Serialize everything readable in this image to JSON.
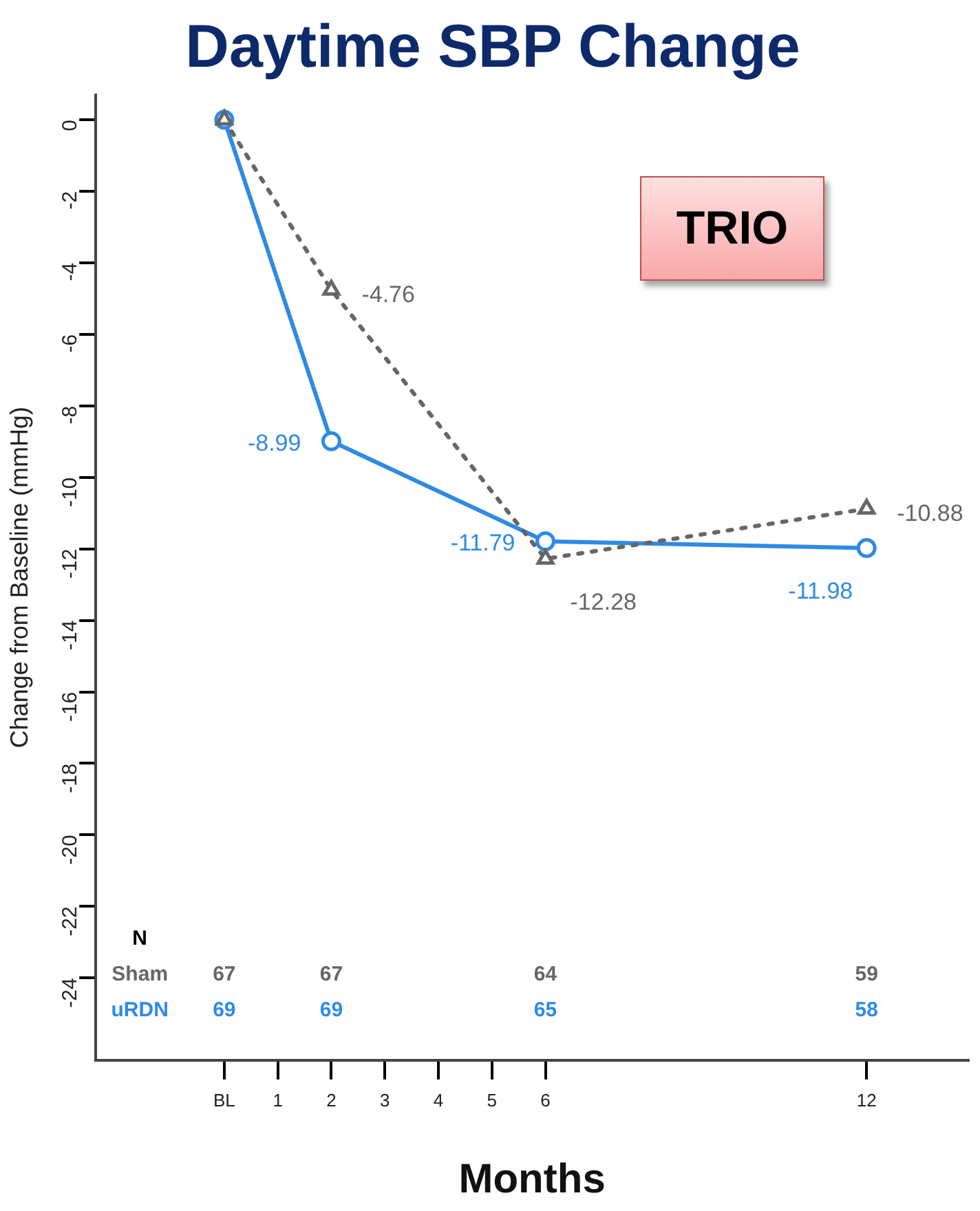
{
  "chart_data": {
    "type": "line",
    "title": "Daytime SBP Change",
    "xlabel": "Months",
    "ylabel": "Change from Baseline (mmHg)",
    "x": [
      0,
      2,
      6,
      12
    ],
    "series": [
      {
        "name": "Sham",
        "color": "#666666",
        "values": [
          0,
          -4.76,
          -12.28,
          -10.88
        ],
        "value_labels": [
          null,
          "-4.76",
          "-12.28",
          "-10.88"
        ],
        "marker": "triangle",
        "line_style": "dotted"
      },
      {
        "name": "uRDN",
        "color": "#2f8ae6",
        "values": [
          0,
          -8.99,
          -11.79,
          -11.98
        ],
        "value_labels": [
          null,
          "-8.99",
          "-11.79",
          "-11.98"
        ],
        "marker": "circle",
        "line_style": "solid"
      }
    ],
    "xlim": [
      -2.4,
      13.9
    ],
    "xticks": [
      {
        "value": 0,
        "label": "BL"
      },
      1,
      2,
      3,
      4,
      5,
      6,
      12
    ],
    "ylim": [
      -26.3,
      0.7
    ],
    "yticks": [
      0,
      -2,
      -4,
      -6,
      -8,
      -10,
      -12,
      -14,
      -16,
      -18,
      -20,
      -22,
      -24
    ],
    "grid": false,
    "legend": false,
    "annotations": [
      "TRIO",
      "N",
      "67",
      "67",
      "64",
      "59",
      "69",
      "69",
      "65",
      "58"
    ]
  }
}
